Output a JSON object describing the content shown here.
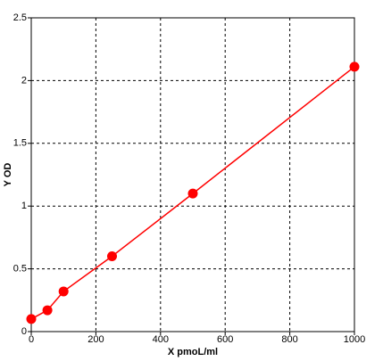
{
  "chart_data": {
    "type": "line",
    "x_label": "X pmoL/ml",
    "y_label": "Y OD",
    "x": [
      0,
      50,
      100,
      250,
      500,
      1000
    ],
    "values": [
      0.1,
      0.17,
      0.32,
      0.6,
      1.1,
      2.11
    ],
    "color": "#ff0000",
    "xlim": [
      0,
      1000
    ],
    "xticks": [
      0,
      200,
      400,
      600,
      800,
      1000
    ],
    "ylim": [
      0,
      2.5
    ],
    "yticks": [
      0,
      0.5,
      1,
      1.5,
      2,
      2.5
    ],
    "grid": true,
    "markers": true
  }
}
